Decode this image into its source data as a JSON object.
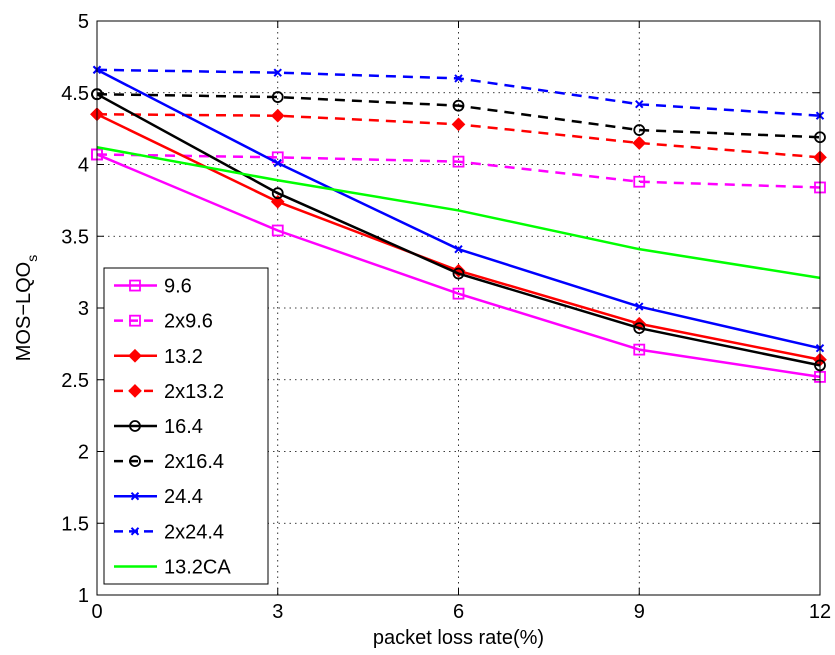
{
  "chart_data": {
    "type": "line",
    "title": "",
    "xlabel": "packet loss rate(%)",
    "ylabel": "MOS−LQO",
    "ylabel_subscript": "s",
    "x": [
      0,
      3,
      6,
      9,
      12
    ],
    "xlim": [
      0,
      12
    ],
    "ylim": [
      1,
      5
    ],
    "xticks": [
      "0",
      "3",
      "6",
      "9",
      "12"
    ],
    "yticks": [
      "1",
      "1.5",
      "2",
      "2.5",
      "3",
      "3.5",
      "4",
      "4.5",
      "5"
    ],
    "grid": true,
    "legend_position": "bottom-left",
    "series": [
      {
        "name": "9.6",
        "values": [
          4.07,
          3.54,
          3.1,
          2.71,
          2.52
        ],
        "color": "#ff00ff",
        "dash": "solid",
        "marker": "square"
      },
      {
        "name": "2x9.6",
        "values": [
          4.07,
          4.05,
          4.02,
          3.88,
          3.84
        ],
        "color": "#ff00ff",
        "dash": "dashed",
        "marker": "square"
      },
      {
        "name": "13.2",
        "values": [
          4.35,
          3.74,
          3.26,
          2.89,
          2.64
        ],
        "color": "#ff0000",
        "dash": "solid",
        "marker": "diamond"
      },
      {
        "name": "2x13.2",
        "values": [
          4.35,
          4.34,
          4.28,
          4.15,
          4.05
        ],
        "color": "#ff0000",
        "dash": "dashed",
        "marker": "diamond"
      },
      {
        "name": "16.4",
        "values": [
          4.49,
          3.8,
          3.24,
          2.86,
          2.6
        ],
        "color": "#000000",
        "dash": "solid",
        "marker": "circle"
      },
      {
        "name": "2x16.4",
        "values": [
          4.49,
          4.47,
          4.41,
          4.24,
          4.19
        ],
        "color": "#000000",
        "dash": "dashed",
        "marker": "circle"
      },
      {
        "name": "24.4",
        "values": [
          4.66,
          4.01,
          3.41,
          3.01,
          2.72
        ],
        "color": "#0000ff",
        "dash": "solid",
        "marker": "x"
      },
      {
        "name": "2x24.4",
        "values": [
          4.66,
          4.64,
          4.6,
          4.42,
          4.34
        ],
        "color": "#0000ff",
        "dash": "dashed",
        "marker": "x"
      },
      {
        "name": "13.2CA",
        "values": [
          4.12,
          3.89,
          3.68,
          3.41,
          3.21
        ],
        "color": "#00ff00",
        "dash": "solid",
        "marker": "none"
      }
    ]
  }
}
